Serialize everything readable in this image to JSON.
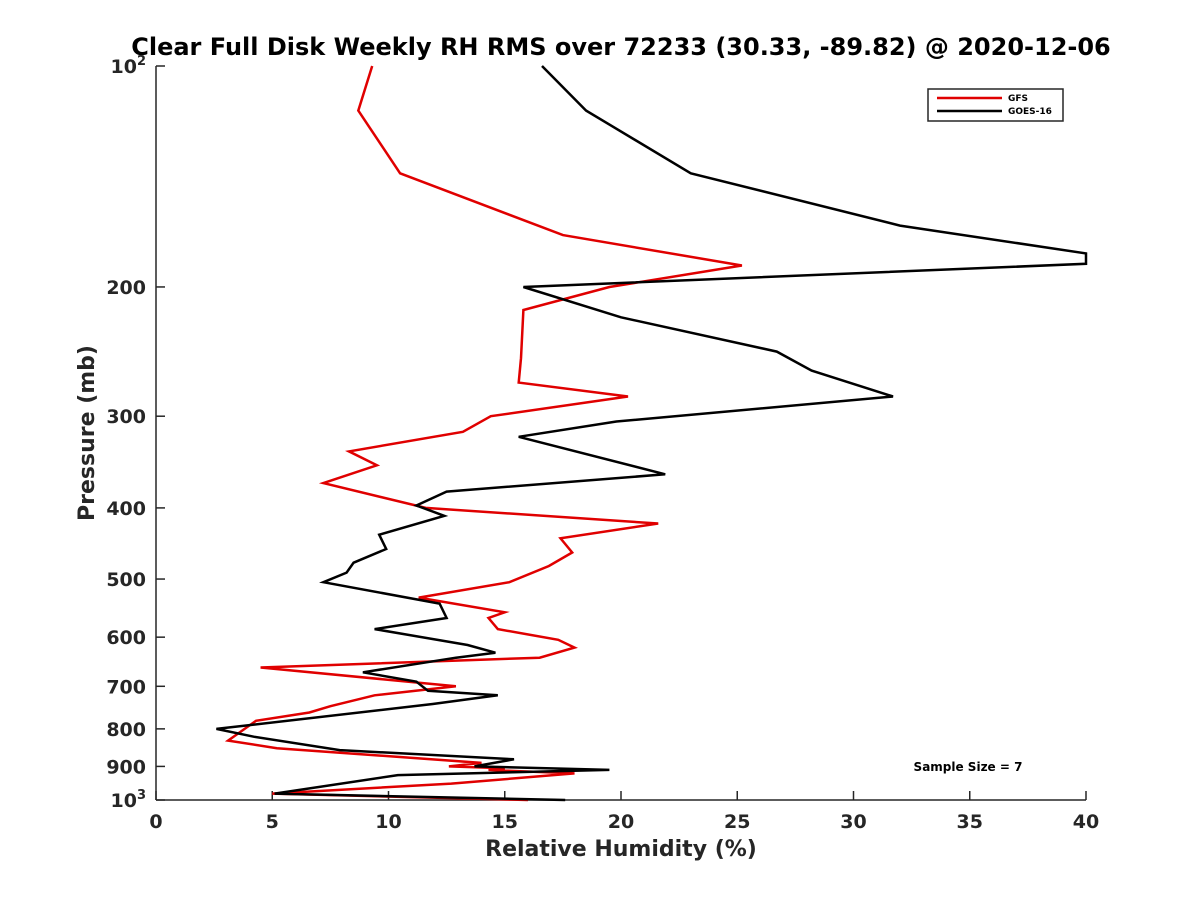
{
  "chart_data": {
    "type": "line",
    "title": "Clear Full Disk Weekly RH RMS over 72233 (30.33, -89.82) @ 2020-12-06",
    "xlabel": "Relative Humidity (%)",
    "ylabel": "Pressure (mb)",
    "xlim": [
      0,
      40
    ],
    "ylim": [
      100,
      1000
    ],
    "y_scale": "log",
    "y_reversed": true,
    "x_ticks": [
      0,
      5,
      10,
      15,
      20,
      25,
      30,
      35,
      40
    ],
    "y_ticks": [
      {
        "value": 100,
        "label": "10",
        "sup": "2"
      },
      {
        "value": 200,
        "label": "200",
        "sup": ""
      },
      {
        "value": 300,
        "label": "300",
        "sup": ""
      },
      {
        "value": 400,
        "label": "400",
        "sup": ""
      },
      {
        "value": 500,
        "label": "500",
        "sup": ""
      },
      {
        "value": 600,
        "label": "600",
        "sup": ""
      },
      {
        "value": 700,
        "label": "700",
        "sup": ""
      },
      {
        "value": 800,
        "label": "800",
        "sup": ""
      },
      {
        "value": 900,
        "label": "900",
        "sup": ""
      },
      {
        "value": 1000,
        "label": "10",
        "sup": "3"
      }
    ],
    "grid": false,
    "legend_placement": "top-right",
    "annotation": "Sample Size = 7",
    "series": [
      {
        "name": "GFS",
        "color": "#e00000",
        "points": [
          [
            9.3,
            100
          ],
          [
            8.7,
            115
          ],
          [
            10.5,
            140
          ],
          [
            17.5,
            170
          ],
          [
            25.2,
            187
          ],
          [
            19.5,
            200
          ],
          [
            15.8,
            215
          ],
          [
            15.7,
            250
          ],
          [
            15.6,
            270
          ],
          [
            20.3,
            282
          ],
          [
            14.4,
            300
          ],
          [
            13.2,
            315
          ],
          [
            8.3,
            335
          ],
          [
            9.5,
            350
          ],
          [
            7.2,
            370
          ],
          [
            11.6,
            400
          ],
          [
            21.6,
            420
          ],
          [
            17.4,
            440
          ],
          [
            17.9,
            460
          ],
          [
            16.9,
            480
          ],
          [
            15.2,
            505
          ],
          [
            11.3,
            530
          ],
          [
            15.0,
            555
          ],
          [
            14.3,
            565
          ],
          [
            14.7,
            585
          ],
          [
            17.3,
            605
          ],
          [
            18.0,
            620
          ],
          [
            16.5,
            640
          ],
          [
            4.5,
            660
          ],
          [
            12.9,
            700
          ],
          [
            9.4,
            720
          ],
          [
            7.5,
            745
          ],
          [
            6.6,
            760
          ],
          [
            4.3,
            780
          ],
          [
            3.1,
            830
          ],
          [
            5.2,
            850
          ],
          [
            14.0,
            890
          ],
          [
            12.6,
            900
          ],
          [
            15.0,
            905
          ],
          [
            14.3,
            910
          ],
          [
            18.0,
            920
          ],
          [
            12.7,
            950
          ],
          [
            5.0,
            980
          ],
          [
            16.0,
            1000
          ]
        ]
      },
      {
        "name": "GOES-16",
        "color": "#000000",
        "points": [
          [
            16.6,
            100
          ],
          [
            18.5,
            115
          ],
          [
            23.0,
            140
          ],
          [
            32.0,
            165
          ],
          [
            40.0,
            180
          ],
          [
            40.0,
            186
          ],
          [
            15.8,
            200
          ],
          [
            20.0,
            220
          ],
          [
            26.7,
            245
          ],
          [
            28.2,
            260
          ],
          [
            31.7,
            282
          ],
          [
            19.8,
            305
          ],
          [
            15.6,
            320
          ],
          [
            21.9,
            360
          ],
          [
            12.5,
            380
          ],
          [
            11.2,
            397
          ],
          [
            12.4,
            410
          ],
          [
            9.6,
            435
          ],
          [
            9.9,
            455
          ],
          [
            8.5,
            475
          ],
          [
            8.2,
            490
          ],
          [
            7.2,
            505
          ],
          [
            12.2,
            540
          ],
          [
            12.5,
            565
          ],
          [
            9.4,
            585
          ],
          [
            13.4,
            615
          ],
          [
            14.6,
            630
          ],
          [
            12.9,
            640
          ],
          [
            8.9,
            670
          ],
          [
            11.2,
            690
          ],
          [
            11.7,
            710
          ],
          [
            14.7,
            720
          ],
          [
            11.9,
            740
          ],
          [
            2.6,
            800
          ],
          [
            4.2,
            820
          ],
          [
            7.9,
            855
          ],
          [
            15.4,
            880
          ],
          [
            13.7,
            900
          ],
          [
            19.5,
            910
          ],
          [
            10.4,
            925
          ],
          [
            5.1,
            980
          ],
          [
            17.6,
            1000
          ]
        ]
      }
    ]
  }
}
